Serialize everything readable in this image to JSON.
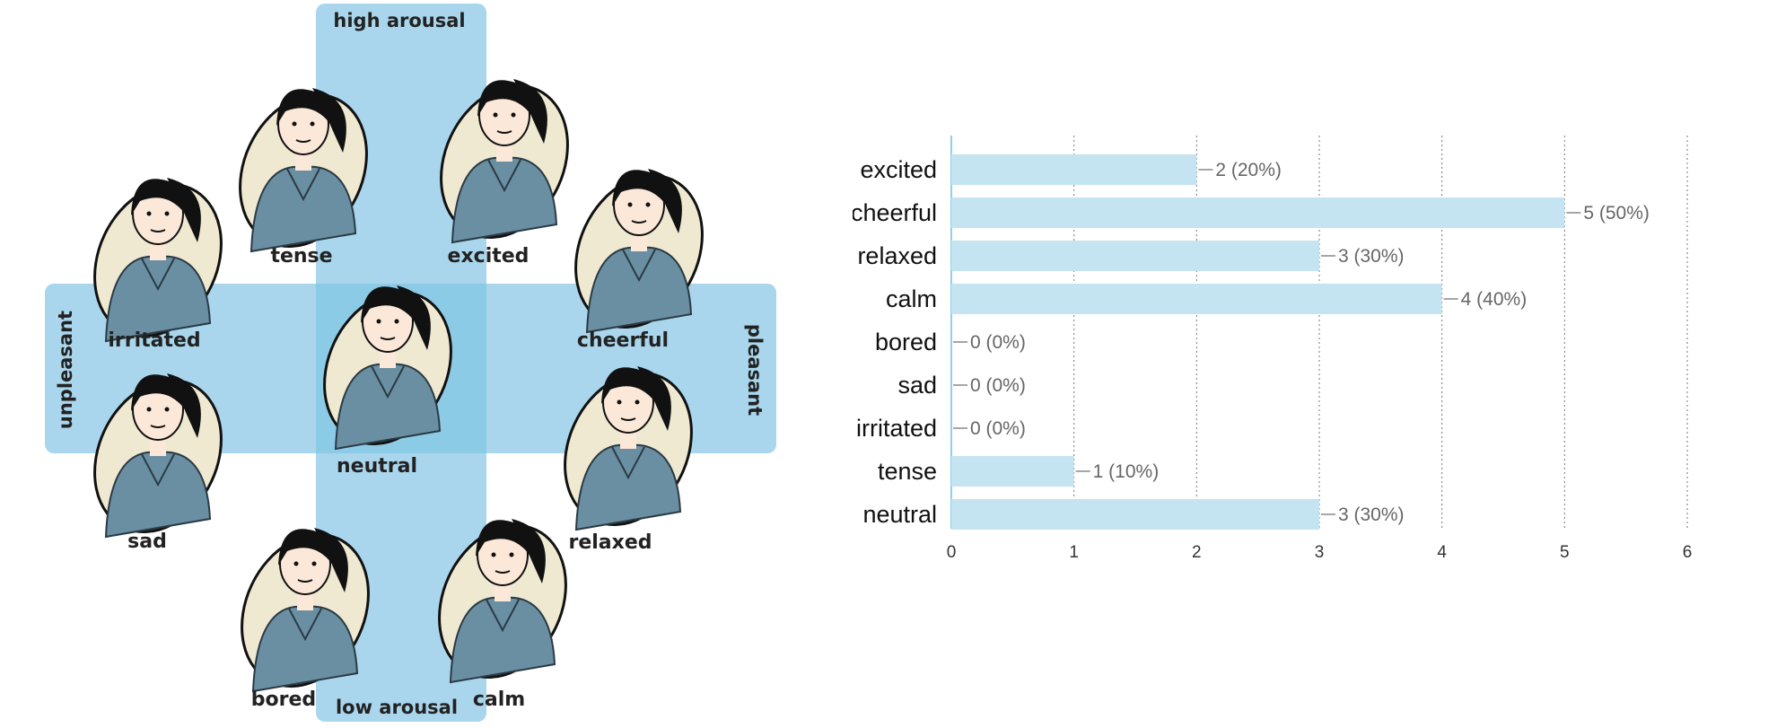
{
  "grid": {
    "axes": {
      "top": "high arousal",
      "bottom": "low arousal",
      "left": "unpleasant",
      "right": "pleasant"
    },
    "emotions": [
      "excited",
      "cheerful",
      "relaxed",
      "calm",
      "bored",
      "sad",
      "irritated",
      "tense",
      "neutral"
    ],
    "colors": {
      "band": "#a9d6ec",
      "center": "#8ccbe6",
      "skin": "#fbe8d8",
      "shirt": "#6a8fa3",
      "oval": "#efe9d2"
    }
  },
  "chart_data": {
    "type": "bar",
    "orientation": "horizontal",
    "categories": [
      "excited",
      "cheerful",
      "relaxed",
      "calm",
      "bored",
      "sad",
      "irritated",
      "tense",
      "neutral"
    ],
    "values": [
      2,
      5,
      3,
      4,
      0,
      0,
      0,
      1,
      3
    ],
    "value_labels": [
      "2 (20%)",
      "5 (50%)",
      "3 (30%)",
      "4 (40%)",
      "0 (0%)",
      "0 (0%)",
      "0 (0%)",
      "1 (10%)",
      "3 (30%)"
    ],
    "xlim": [
      0,
      6
    ],
    "xticks": [
      0,
      1,
      2,
      3,
      4,
      5,
      6
    ],
    "grid": "vertical-dotted",
    "bar_color": "#c4e4f1"
  }
}
